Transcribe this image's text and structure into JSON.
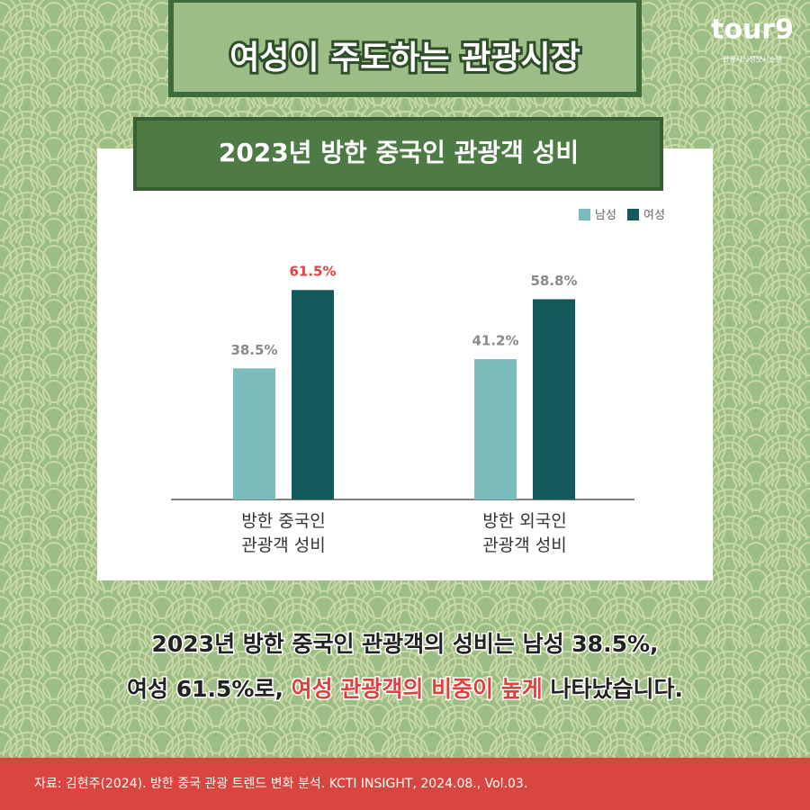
{
  "header": {
    "title": "여성이 주도하는 관광시장",
    "logo": "tour9",
    "logo_caption": "관광지식정보시스템"
  },
  "chart_data": {
    "type": "bar",
    "title": "2023년 방한 중국인 관광객 성비",
    "categories": [
      "방한 중국인\n관광객 성비",
      "방한 외국인\n관광객 성비"
    ],
    "series": [
      {
        "name": "남성",
        "color": "#7bbcbc",
        "values": [
          38.5,
          41.2
        ],
        "value_labels": [
          "38.5%",
          "41.2%"
        ],
        "label_colors": [
          "#8a8a8a",
          "#8a8a8a"
        ]
      },
      {
        "name": "여성",
        "color": "#155a5a",
        "values": [
          61.5,
          58.8
        ],
        "value_labels": [
          "61.5%",
          "58.8%"
        ],
        "label_colors": [
          "#e0403f",
          "#8a8a8a"
        ]
      }
    ],
    "ylim": [
      0,
      65
    ],
    "legend": "top-right"
  },
  "caption": {
    "line1": "2023년 방한 중국인 관광객의 성비는 남성 38.5%,",
    "line2": [
      "여성 61.5%로, ",
      "여성 관광객의 비중이 높게",
      " 나타났습니다."
    ]
  },
  "footer": {
    "source": "자료: 김현주(2024). 방한 중국 관광 트렌드 변화 분석. KCTI INSIGHT, 2024.08., Vol.03."
  }
}
